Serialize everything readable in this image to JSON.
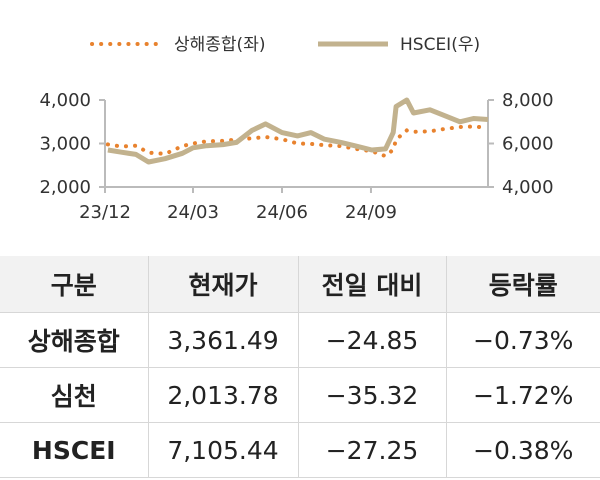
{
  "chart_data": {
    "type": "line",
    "legend": {
      "placement": "top-center"
    },
    "x_tick_labels": [
      "23/12",
      "24/03",
      "24/06",
      "24/09"
    ],
    "y_left": {
      "ticks": [
        "2,000",
        "3,000",
        "4,000"
      ],
      "range": [
        2000,
        4000
      ]
    },
    "y_right": {
      "ticks": [
        "4,000",
        "6,000",
        "8,000"
      ],
      "range": [
        4000,
        8000
      ]
    },
    "series": [
      {
        "name": "상해종합(좌)",
        "axis": "left",
        "style": "dotted",
        "color": "#E8822E",
        "x": [
          "23/12/04",
          "23/12/18",
          "24/01/02",
          "24/01/15",
          "24/02/01",
          "24/02/19",
          "24/03/01",
          "24/03/15",
          "24/04/01",
          "24/04/15",
          "24/05/01",
          "24/05/15",
          "24/06/01",
          "24/06/17",
          "24/07/01",
          "24/07/15",
          "24/08/01",
          "24/08/15",
          "24/09/02",
          "24/09/16",
          "24/09/24",
          "24/09/27",
          "24/10/08",
          "24/10/15",
          "24/11/01",
          "24/11/15",
          "24/12/02",
          "24/12/16",
          "24/12/31"
        ],
        "values": [
          2980,
          2930,
          2950,
          2790,
          2760,
          2940,
          3000,
          3050,
          3060,
          3090,
          3120,
          3150,
          3100,
          3000,
          2990,
          2960,
          2940,
          2880,
          2820,
          2710,
          2860,
          3090,
          3300,
          3270,
          3280,
          3330,
          3380,
          3390,
          3360
        ]
      },
      {
        "name": "HSCEI(우)",
        "axis": "right",
        "style": "solid",
        "color": "#C2B28E",
        "x": [
          "23/12/04",
          "23/12/18",
          "24/01/02",
          "24/01/15",
          "24/02/01",
          "24/02/19",
          "24/03/01",
          "24/03/15",
          "24/04/01",
          "24/04/15",
          "24/05/01",
          "24/05/15",
          "24/06/01",
          "24/06/17",
          "24/07/01",
          "24/07/15",
          "24/08/01",
          "24/08/15",
          "24/09/02",
          "24/09/16",
          "24/09/24",
          "24/09/27",
          "24/10/08",
          "24/10/15",
          "24/11/01",
          "24/11/15",
          "24/12/02",
          "24/12/16",
          "24/12/31"
        ],
        "values": [
          5700,
          5600,
          5500,
          5150,
          5300,
          5550,
          5800,
          5900,
          5950,
          6050,
          6600,
          6900,
          6500,
          6350,
          6500,
          6200,
          6050,
          5900,
          5700,
          5750,
          6500,
          7700,
          8000,
          7400,
          7550,
          7300,
          7000,
          7150,
          7105
        ]
      }
    ]
  },
  "table": {
    "headers": [
      "구분",
      "현재가",
      "전일 대비",
      "등락률"
    ],
    "rows": [
      {
        "name": "상해종합",
        "price": "3,361.49",
        "change": "−24.85",
        "rate": "−0.73%"
      },
      {
        "name": "심천",
        "price": "2,013.78",
        "change": "−35.32",
        "rate": "−1.72%"
      },
      {
        "name": "HSCEI",
        "price": "7,105.44",
        "change": "−27.25",
        "rate": "−0.38%"
      }
    ]
  }
}
